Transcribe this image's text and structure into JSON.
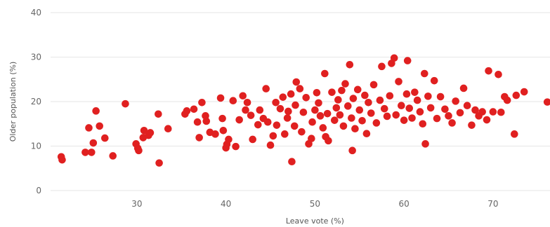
{
  "chart_data": {
    "type": "scatter",
    "xlabel": "Leave vote (%)",
    "ylabel": "Older population (%)",
    "xlim": [
      20.3,
      76.4
    ],
    "ylim": [
      0,
      40
    ],
    "x_ticks": [
      30,
      40,
      50,
      60,
      70
    ],
    "y_ticks": [
      0,
      10,
      20,
      30,
      40
    ],
    "grid": "horizontal",
    "color": "#e02020",
    "points": [
      [
        21.5,
        7.6
      ],
      [
        21.6,
        6.9
      ],
      [
        24.2,
        8.6
      ],
      [
        24.6,
        14.1
      ],
      [
        24.9,
        8.6
      ],
      [
        25.1,
        10.7
      ],
      [
        25.4,
        17.9
      ],
      [
        25.8,
        14.5
      ],
      [
        26.4,
        11.8
      ],
      [
        27.3,
        7.8
      ],
      [
        28.7,
        19.5
      ],
      [
        29.9,
        10.5
      ],
      [
        30.1,
        9.5
      ],
      [
        30.2,
        9.0
      ],
      [
        30.7,
        11.9
      ],
      [
        30.8,
        13.5
      ],
      [
        31.3,
        12.4
      ],
      [
        31.5,
        13.0
      ],
      [
        32.4,
        17.2
      ],
      [
        32.5,
        6.2
      ],
      [
        33.5,
        13.9
      ],
      [
        35.4,
        17.2
      ],
      [
        35.6,
        17.9
      ],
      [
        36.4,
        18.3
      ],
      [
        36.8,
        15.4
      ],
      [
        37.0,
        11.9
      ],
      [
        37.3,
        19.8
      ],
      [
        37.7,
        16.8
      ],
      [
        37.8,
        15.6
      ],
      [
        38.2,
        13.1
      ],
      [
        38.8,
        12.7
      ],
      [
        39.4,
        20.8
      ],
      [
        39.6,
        16.2
      ],
      [
        39.7,
        13.5
      ],
      [
        40.0,
        9.6
      ],
      [
        40.3,
        11.5
      ],
      [
        40.1,
        10.4
      ],
      [
        40.8,
        20.2
      ],
      [
        41.1,
        9.9
      ],
      [
        41.5,
        15.9
      ],
      [
        41.9,
        21.3
      ],
      [
        42.2,
        18.1
      ],
      [
        42.4,
        19.8
      ],
      [
        42.8,
        16.9
      ],
      [
        43.0,
        11.5
      ],
      [
        43.6,
        14.8
      ],
      [
        43.8,
        18.1
      ],
      [
        44.2,
        16.2
      ],
      [
        44.5,
        22.9
      ],
      [
        44.7,
        15.4
      ],
      [
        45.0,
        10.2
      ],
      [
        45.3,
        12.3
      ],
      [
        45.6,
        19.8
      ],
      [
        45.7,
        14.7
      ],
      [
        46.1,
        18.4
      ],
      [
        46.4,
        21.0
      ],
      [
        46.6,
        12.7
      ],
      [
        46.9,
        16.3
      ],
      [
        47.0,
        17.8
      ],
      [
        47.3,
        21.7
      ],
      [
        47.4,
        6.5
      ],
      [
        47.7,
        14.5
      ],
      [
        47.8,
        19.2
      ],
      [
        47.9,
        24.4
      ],
      [
        48.3,
        22.9
      ],
      [
        48.5,
        13.2
      ],
      [
        48.7,
        17.6
      ],
      [
        49.0,
        20.9
      ],
      [
        49.3,
        10.5
      ],
      [
        49.6,
        11.7
      ],
      [
        49.7,
        15.4
      ],
      [
        50.0,
        18.1
      ],
      [
        50.2,
        22.0
      ],
      [
        50.4,
        19.7
      ],
      [
        50.6,
        16.8
      ],
      [
        50.9,
        14.1
      ],
      [
        51.1,
        26.3
      ],
      [
        51.2,
        12.1
      ],
      [
        51.4,
        17.3
      ],
      [
        51.5,
        11.2
      ],
      [
        51.9,
        22.1
      ],
      [
        52.2,
        15.8
      ],
      [
        52.4,
        18.6
      ],
      [
        52.6,
        20.4
      ],
      [
        52.8,
        17.0
      ],
      [
        53.0,
        22.5
      ],
      [
        53.2,
        14.5
      ],
      [
        53.4,
        24.0
      ],
      [
        53.7,
        19.0
      ],
      [
        53.9,
        28.3
      ],
      [
        54.1,
        16.3
      ],
      [
        54.2,
        9.0
      ],
      [
        54.3,
        20.7
      ],
      [
        54.5,
        13.9
      ],
      [
        54.8,
        22.7
      ],
      [
        55.0,
        18.1
      ],
      [
        55.3,
        15.7
      ],
      [
        55.6,
        21.4
      ],
      [
        55.8,
        12.8
      ],
      [
        56.0,
        19.8
      ],
      [
        56.3,
        17.4
      ],
      [
        56.6,
        23.8
      ],
      [
        56.9,
        15.2
      ],
      [
        57.3,
        20.3
      ],
      [
        57.5,
        27.9
      ],
      [
        57.8,
        18.4
      ],
      [
        58.1,
        16.7
      ],
      [
        58.4,
        21.3
      ],
      [
        58.6,
        28.6
      ],
      [
        58.9,
        29.8
      ],
      [
        59.1,
        17.0
      ],
      [
        59.4,
        24.5
      ],
      [
        59.7,
        19.1
      ],
      [
        60.0,
        15.8
      ],
      [
        60.3,
        21.7
      ],
      [
        60.4,
        29.2
      ],
      [
        60.6,
        18.5
      ],
      [
        60.9,
        16.3
      ],
      [
        61.2,
        22.1
      ],
      [
        61.5,
        20.3
      ],
      [
        61.8,
        17.7
      ],
      [
        62.1,
        15.0
      ],
      [
        62.3,
        26.3
      ],
      [
        62.4,
        10.5
      ],
      [
        62.7,
        21.2
      ],
      [
        63.0,
        18.6
      ],
      [
        63.4,
        24.7
      ],
      [
        63.7,
        16.2
      ],
      [
        64.1,
        21.1
      ],
      [
        64.6,
        18.3
      ],
      [
        65.0,
        16.8
      ],
      [
        65.4,
        15.2
      ],
      [
        65.8,
        20.1
      ],
      [
        66.3,
        17.5
      ],
      [
        66.7,
        23.0
      ],
      [
        67.1,
        19.1
      ],
      [
        67.6,
        14.7
      ],
      [
        68.0,
        18.1
      ],
      [
        68.4,
        16.8
      ],
      [
        68.8,
        17.7
      ],
      [
        69.3,
        15.9
      ],
      [
        69.5,
        26.9
      ],
      [
        70.0,
        17.7
      ],
      [
        70.6,
        26.1
      ],
      [
        70.9,
        17.6
      ],
      [
        71.3,
        21.1
      ],
      [
        71.6,
        20.3
      ],
      [
        72.4,
        12.7
      ],
      [
        72.6,
        21.4
      ],
      [
        73.5,
        22.2
      ],
      [
        76.1,
        19.9
      ]
    ]
  }
}
